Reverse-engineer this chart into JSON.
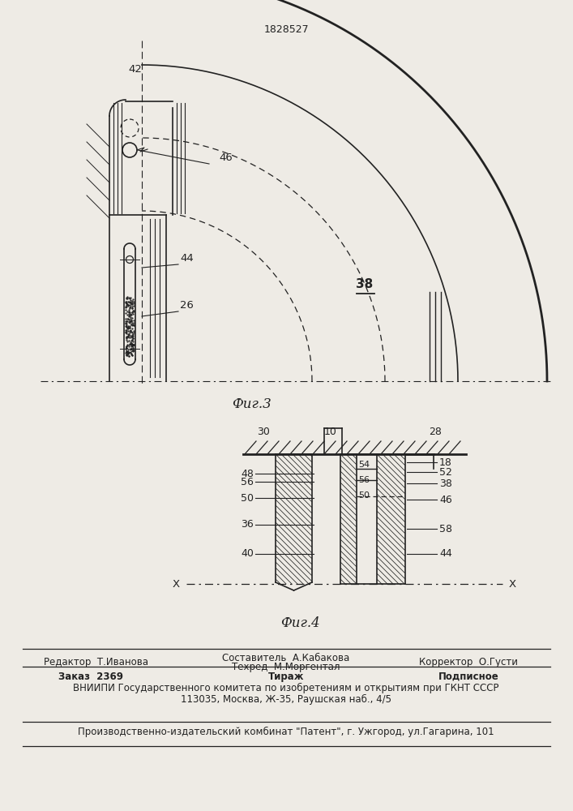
{
  "patent_number": "1828527",
  "fig3_label": "Фиг.3",
  "fig4_label": "Фиг.4",
  "bg_color": "#eeebe5",
  "line_color": "#222222",
  "editor_line": "Редактор  Т.Иванова",
  "sostavitel_line": "Составитель  А.Кабакова",
  "tekhred_line": "Техред  М.Моргентал",
  "korrektor_line": "Корректор  О.Густи",
  "order_line": "Заказ  2369",
  "tirazh_line": "Тираж",
  "podpisnoe_line": "Подписное",
  "vniip_line": "ВНИИПИ Государственного комитета по изобретениям и открытиям при ГКНТ СССР",
  "addr_line": "113035, Москва, Ж-35, Раушская наб., 4/5",
  "prod_line": "Производственно-издательский комбинат \"Патент\", г. Ужгород, ул.Гагарина, 101"
}
